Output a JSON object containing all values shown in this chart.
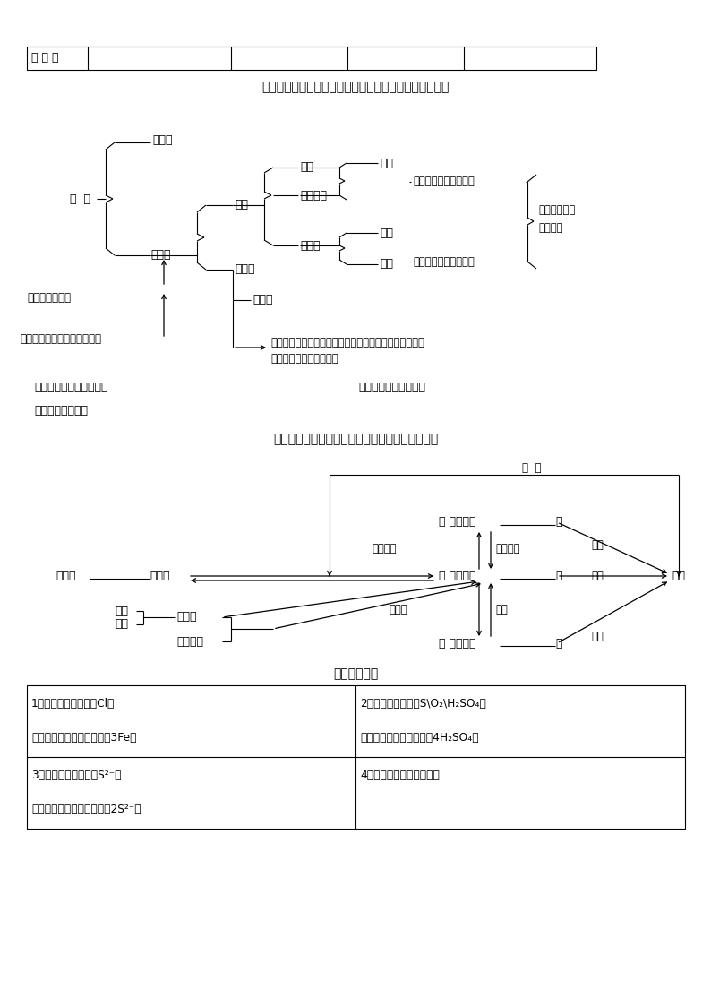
{
  "bg_color": "#ffffff",
  "title1": "八、物质的分类、物质的组成及其各类物质化学式的书写",
  "title2": "九、物质的构成和几种微粒（概念、性质）的关系",
  "title3": "十、化学用语",
  "header_label": "举 实 例",
  "sec8_label1": "㈠常见元素化合价口诀：",
  "sec8_label2": "㈡常见原子团化合价：",
  "sec8_label3": "㈢化合价的规律：",
  "rule_text1": "化学式的书写原则：正负化合价代数和为零！正在前，负",
  "rule_text2": "在后！读在前，写在后！",
  "cell11a": "1、元素符号的意义（Cl）",
  "cell11b": "元素符号前加系数的意义（3Fe）",
  "cell12a": "2、化学式的意义（S\\O₂\\H₂SO₄）",
  "cell12b": "化学式前加系数的意义（4H₂SO₄）",
  "cell21a": "3、离子符号的意义（S²⁻）",
  "cell21b": "离子符号前加系数的意义（2S²⁻）",
  "cell22a": "4、化合价的写法及其意义"
}
